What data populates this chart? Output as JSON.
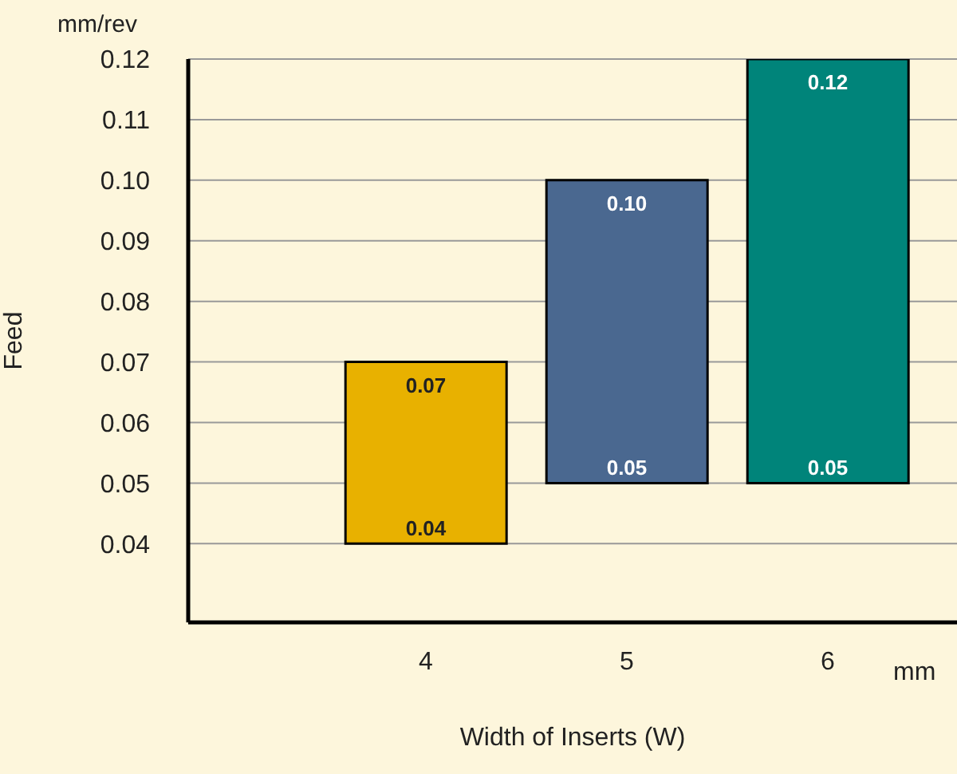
{
  "chart_data": {
    "type": "bar",
    "xlabel": "Width of Inserts (W)",
    "ylabel": "Feed",
    "categories": [
      "4",
      "5",
      "6"
    ],
    "values": [
      0.03,
      0.05,
      0.07
    ],
    "base": [
      0.04,
      0.05,
      0.05
    ],
    "colors": [
      "#e8b100",
      "#4a6890",
      "#00847a"
    ],
    "ylim": [
      0.027,
      0.12
    ],
    "yticks": [
      0.04,
      0.05,
      0.06,
      0.07,
      0.08,
      0.09,
      {
        "value": 0.1,
        "label": "0.10"
      },
      0.11,
      0.12
    ],
    "grid": "y",
    "annotations": [
      "mm/rev",
      "mm",
      {
        "text": "0.07",
        "x": "4",
        "y": 0.07
      },
      {
        "text": "0.04",
        "x": "4",
        "y": 0.04
      },
      {
        "text": "0.10",
        "x": "5",
        "y": 0.1
      },
      {
        "text": "0.05",
        "x": "5",
        "y": 0.05
      },
      {
        "text": "0.12",
        "x": "6",
        "y": 0.12
      },
      {
        "text": "0.05",
        "x": "6",
        "y": 0.05
      }
    ]
  }
}
